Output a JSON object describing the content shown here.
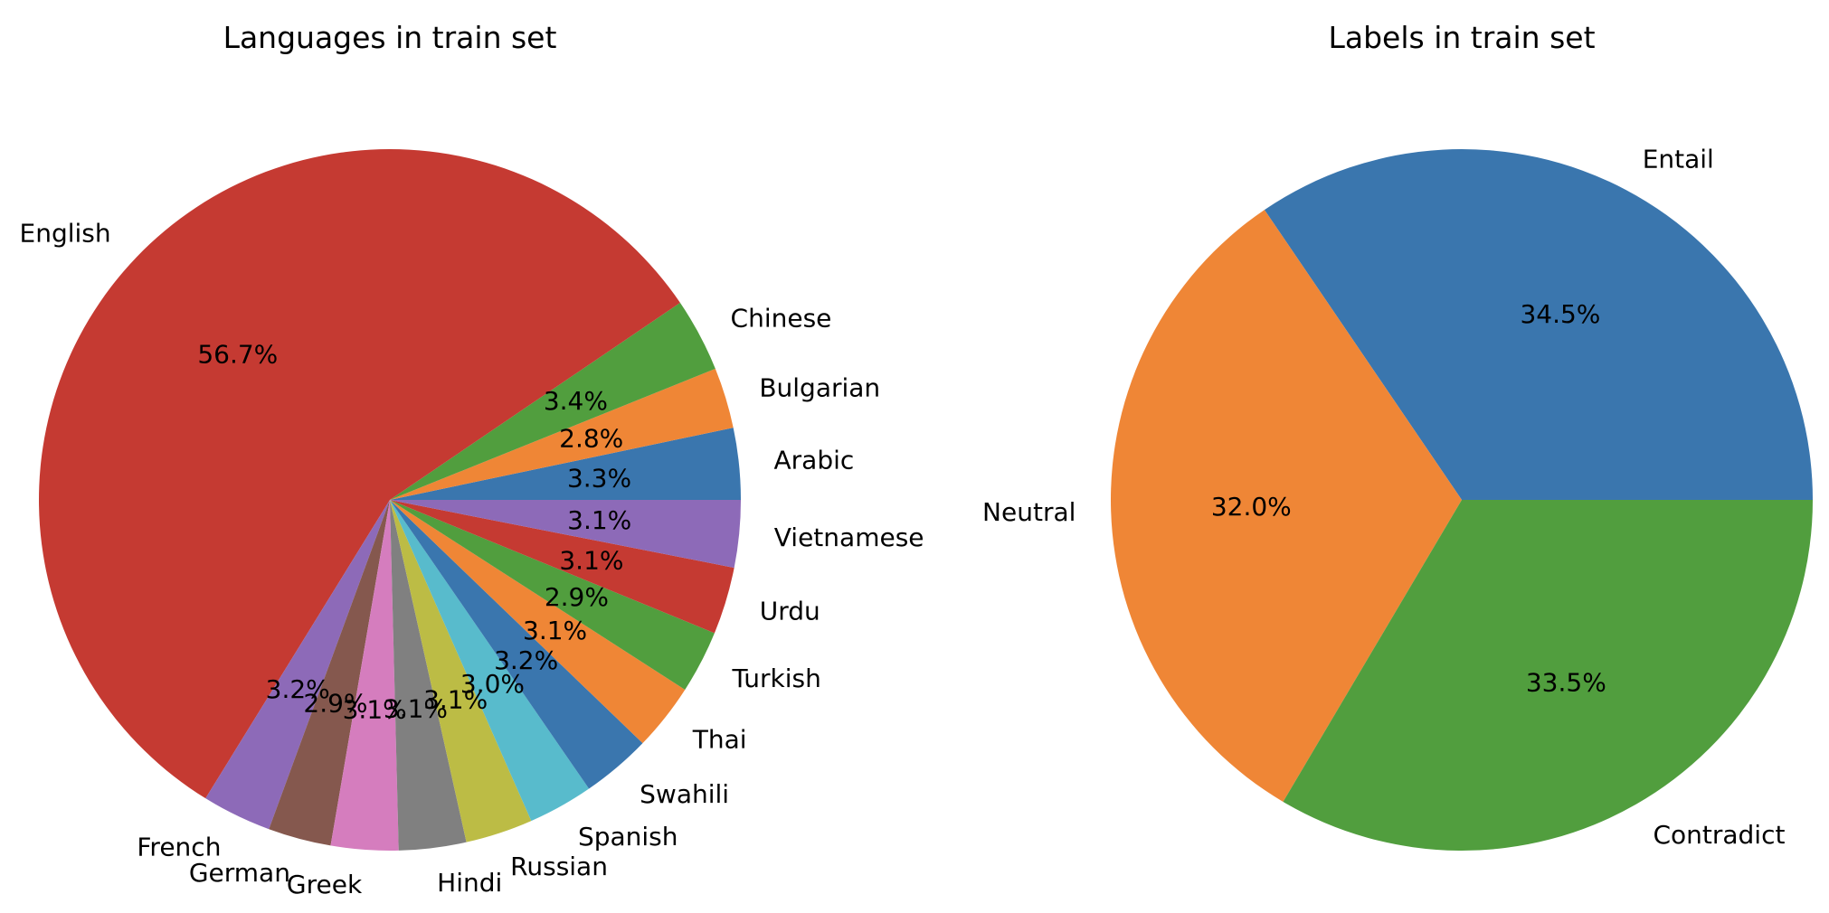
{
  "chart_data": [
    {
      "type": "pie",
      "title": "Languages in train set",
      "slices": [
        {
          "label": "Arabic",
          "value": 3.3,
          "pct_text": "3.3%",
          "color": "#3a76ae"
        },
        {
          "label": "Bulgarian",
          "value": 2.8,
          "pct_text": "2.8%",
          "color": "#ef8636"
        },
        {
          "label": "Chinese",
          "value": 3.4,
          "pct_text": "3.4%",
          "color": "#519e3e"
        },
        {
          "label": "English",
          "value": 56.7,
          "pct_text": "56.7%",
          "color": "#c53a32"
        },
        {
          "label": "French",
          "value": 3.2,
          "pct_text": "3.2%",
          "color": "#8d6ab8"
        },
        {
          "label": "German",
          "value": 2.9,
          "pct_text": "2.9%",
          "color": "#85584e"
        },
        {
          "label": "Greek",
          "value": 3.1,
          "pct_text": "3.1%",
          "color": "#d57dbe"
        },
        {
          "label": "Hindi",
          "value": 3.1,
          "pct_text": "3.1%",
          "color": "#808080"
        },
        {
          "label": "Russian",
          "value": 3.1,
          "pct_text": "3.1%",
          "color": "#bcbc45"
        },
        {
          "label": "Spanish",
          "value": 3.0,
          "pct_text": "3.0%",
          "color": "#58bbcc"
        },
        {
          "label": "Swahili",
          "value": 3.2,
          "pct_text": "3.2%",
          "color": "#3a76ae"
        },
        {
          "label": "Thai",
          "value": 3.1,
          "pct_text": "3.1%",
          "color": "#ef8636"
        },
        {
          "label": "Turkish",
          "value": 2.9,
          "pct_text": "2.9%",
          "color": "#519e3e"
        },
        {
          "label": "Urdu",
          "value": 3.1,
          "pct_text": "3.1%",
          "color": "#c53a32"
        },
        {
          "label": "Vietnamese",
          "value": 3.1,
          "pct_text": "3.1%",
          "color": "#8d6ab8"
        }
      ]
    },
    {
      "type": "pie",
      "title": "Labels in train set",
      "slices": [
        {
          "label": "Entail",
          "value": 34.5,
          "pct_text": "34.5%",
          "color": "#3a76ae"
        },
        {
          "label": "Neutral",
          "value": 32.0,
          "pct_text": "32.0%",
          "color": "#ef8636"
        },
        {
          "label": "Contradict",
          "value": 33.5,
          "pct_text": "33.5%",
          "color": "#519e3e"
        }
      ]
    }
  ]
}
